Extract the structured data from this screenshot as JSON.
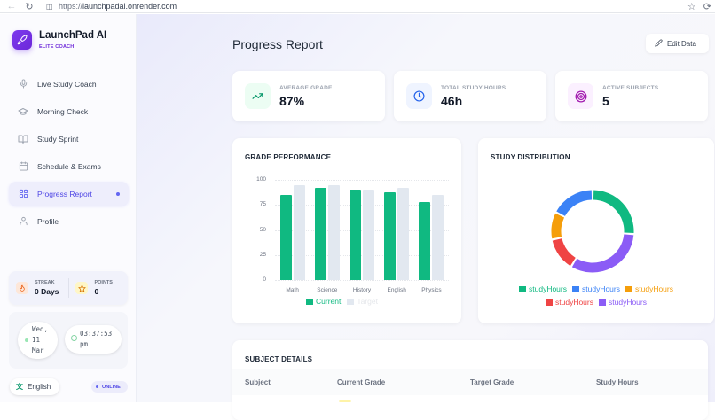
{
  "browser": {
    "url_scheme": "https://",
    "url_host": "launchpadai.onrender.com"
  },
  "brand": {
    "name": "LaunchPad AI",
    "subtitle": "ELITE COACH",
    "accent": "#7c3aed"
  },
  "sidebar": {
    "items": [
      {
        "label": "Live Study Coach",
        "icon": "microphone-icon",
        "active": false
      },
      {
        "label": "Morning Check",
        "icon": "graduation-cap-icon",
        "active": false
      },
      {
        "label": "Study Sprint",
        "icon": "book-open-icon",
        "active": false
      },
      {
        "label": "Schedule & Exams",
        "icon": "calendar-icon",
        "active": false
      },
      {
        "label": "Progress Report",
        "icon": "grid-icon",
        "active": true
      },
      {
        "label": "Profile",
        "icon": "user-icon",
        "active": false
      }
    ],
    "streak": {
      "label": "STREAK",
      "value": "0 Days"
    },
    "points": {
      "label": "POINTS",
      "value": "0"
    },
    "date": {
      "line1": "Wed,",
      "line2": "11",
      "line3": "Mar"
    },
    "time": {
      "line1": "03:37:53",
      "line2": "pm"
    },
    "language": "English",
    "status": "ONLINE"
  },
  "header": {
    "title": "Progress Report",
    "edit_label": "Edit Data"
  },
  "kpis": [
    {
      "label": "AVERAGE GRADE",
      "value": "87%",
      "icon": "trending-up-icon",
      "color": "#059669",
      "bg": "#ecfdf3"
    },
    {
      "label": "TOTAL STUDY HOURS",
      "value": "46h",
      "icon": "clock-icon",
      "color": "#2563eb",
      "bg": "#eff4ff"
    },
    {
      "label": "ACTIVE SUBJECTS",
      "value": "5",
      "icon": "target-icon",
      "color": "#a21caf",
      "bg": "#fbf0ff"
    }
  ],
  "grade_card": {
    "title": "GRADE PERFORMANCE"
  },
  "distribution_card": {
    "title": "STUDY DISTRIBUTION"
  },
  "subject_details": {
    "title": "SUBJECT DETAILS",
    "columns": [
      "Subject",
      "Current Grade",
      "Target Grade",
      "Study Hours"
    ]
  },
  "chart_data": [
    {
      "type": "bar",
      "title": "GRADE PERFORMANCE",
      "categories": [
        "Math",
        "Science",
        "History",
        "English",
        "Physics"
      ],
      "series": [
        {
          "name": "Current",
          "color": "#10b981",
          "values": [
            85,
            92,
            90,
            88,
            78
          ]
        },
        {
          "name": "Target",
          "color": "#e2e8f0",
          "values": [
            95,
            95,
            90,
            92,
            85
          ]
        }
      ],
      "yticks": [
        "100",
        "75",
        "50",
        "25",
        "0"
      ],
      "ylim": [
        0,
        100
      ],
      "xlabel": "",
      "ylabel": "",
      "grid": true,
      "legend_position": "bottom"
    },
    {
      "type": "pie",
      "subtype": "donut",
      "title": "STUDY DISTRIBUTION",
      "labels": [
        "studyHours",
        "studyHours",
        "studyHours",
        "studyHours",
        "studyHours"
      ],
      "values": [
        12,
        8,
        5,
        6,
        15
      ],
      "colors": [
        "#10b981",
        "#3b82f6",
        "#f59e0b",
        "#ef4444",
        "#8b5cf6"
      ],
      "order_clockwise_from_top": [
        "#10b981",
        "#8b5cf6",
        "#ef4444",
        "#f59e0b",
        "#3b82f6"
      ],
      "legend_position": "bottom"
    }
  ]
}
